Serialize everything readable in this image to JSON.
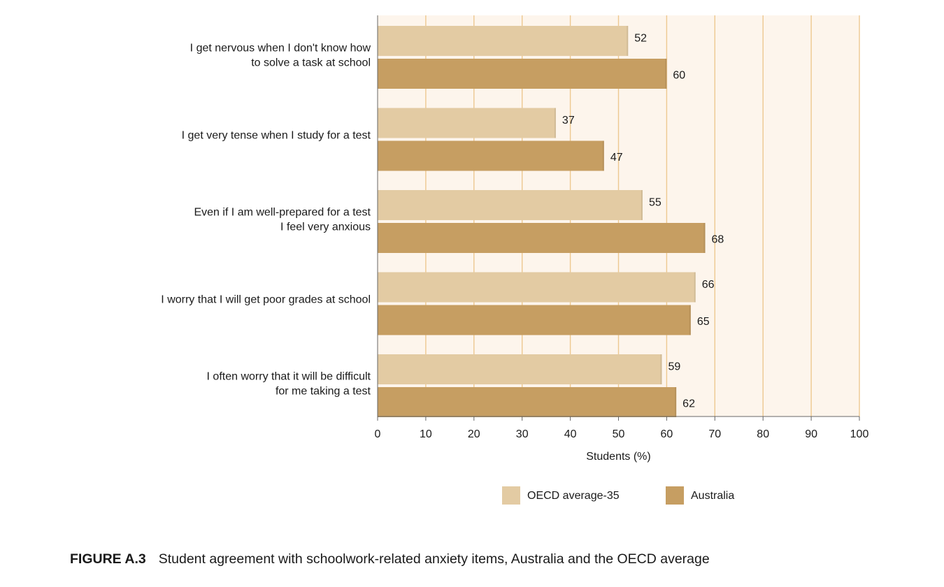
{
  "chart_data": {
    "type": "bar",
    "orientation": "horizontal",
    "categories": [
      [
        "I get nervous when I don't know how",
        "to solve a task at school"
      ],
      [
        "I get very tense when I study for a test"
      ],
      [
        "Even if I am well-prepared for a test",
        "I feel very anxious"
      ],
      [
        "I worry that I will get poor grades at school"
      ],
      [
        "I often worry that it will be difficult",
        "for me taking a test"
      ]
    ],
    "series": [
      {
        "name": "OECD average-35",
        "values": [
          52,
          37,
          55,
          66,
          59
        ],
        "color": "#e3cba3"
      },
      {
        "name": "Australia",
        "values": [
          60,
          47,
          68,
          65,
          62
        ],
        "color": "#c69e62"
      }
    ],
    "xlabel": "Students (%)",
    "xlim": [
      0,
      100
    ],
    "xticks": [
      0,
      10,
      20,
      30,
      40,
      50,
      60,
      70,
      80,
      90,
      100
    ],
    "grid": true,
    "legend_position": "bottom",
    "colors": {
      "plot_background": "#fdf5ec",
      "gridline": "#edc890",
      "axis": "#666666"
    }
  },
  "figure": {
    "label": "FIGURE A.3",
    "caption": "Student agreement with schoolwork-related anxiety items, Australia and the OECD average"
  }
}
